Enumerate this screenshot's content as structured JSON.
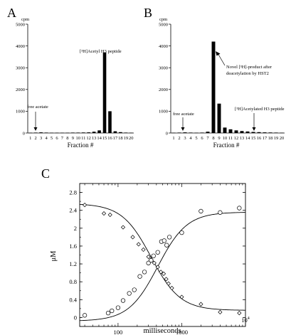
{
  "chart_data": [
    {
      "panel": "A",
      "type": "bar",
      "ylabel": "cpm",
      "xlabel": "Fraction #",
      "categories": [
        "1",
        "2",
        "3",
        "4",
        "5",
        "6",
        "7",
        "8",
        "9",
        "10",
        "11",
        "12",
        "13",
        "14",
        "15",
        "16",
        "17",
        "18",
        "19",
        "20"
      ],
      "values": [
        15,
        20,
        30,
        20,
        15,
        15,
        15,
        15,
        20,
        20,
        25,
        30,
        60,
        120,
        3700,
        1000,
        80,
        40,
        20,
        15
      ],
      "ylim": [
        0,
        5000
      ],
      "yticks": [
        "0",
        "1000",
        "2000",
        "3000",
        "4000",
        "5000"
      ],
      "annotations": [
        {
          "text": "free acetate",
          "category": "3"
        },
        {
          "text": "[³H]Acetyl H3 peptide",
          "category": "15"
        }
      ]
    },
    {
      "panel": "B",
      "type": "bar",
      "ylabel": "cpm",
      "xlabel": "Fraction #",
      "categories": [
        "1",
        "2",
        "3",
        "4",
        "5",
        "6",
        "7",
        "8",
        "9",
        "10",
        "11",
        "12",
        "13",
        "14",
        "15",
        "16",
        "17",
        "18",
        "19",
        "20"
      ],
      "values": [
        15,
        20,
        30,
        20,
        15,
        20,
        60,
        4200,
        1350,
        250,
        170,
        120,
        90,
        70,
        50,
        40,
        30,
        25,
        20,
        15
      ],
      "ylim": [
        0,
        5000
      ],
      "yticks": [
        "0",
        "1000",
        "2000",
        "3000",
        "4000",
        "5000"
      ],
      "annotations": [
        {
          "text": "free acetate",
          "category": "3"
        },
        {
          "text": "Novel [³H]-product after",
          "category": "8"
        },
        {
          "text": "deacetylation by HST2",
          "category": "8"
        },
        {
          "text": "[³H]Acetylated H3 peptide",
          "category": "15"
        }
      ]
    },
    {
      "panel": "C",
      "type": "scatter",
      "xscale": "log",
      "xlabel": "milliseconds",
      "ylabel": "μM",
      "xlim": [
        25,
        10000
      ],
      "ylim": [
        -0.2,
        3.0
      ],
      "xticks": [
        {
          "value": 100,
          "label": "100"
        },
        {
          "value": 1000,
          "label": "1000"
        }
      ],
      "xtick_last": {
        "base": "10",
        "exp": "4"
      },
      "yticks": [
        "0",
        "0.4",
        "0.8",
        "1.2",
        "1.6",
        "2",
        "2.4",
        "2.8"
      ],
      "series": [
        {
          "marker": "diamond",
          "x": [
            30,
            60,
            75,
            120,
            170,
            210,
            250,
            300,
            330,
            370,
            420,
            470,
            520,
            570,
            620,
            700,
            1000,
            2000,
            4000,
            8000
          ],
          "y": [
            2.52,
            2.33,
            2.3,
            2.02,
            1.8,
            1.64,
            1.52,
            1.36,
            1.3,
            1.22,
            1.13,
            1.02,
            0.98,
            0.86,
            0.76,
            0.66,
            0.46,
            0.3,
            0.12,
            0.1
          ],
          "fit": {
            "top": 2.55,
            "bottom": 0.16,
            "x50": 330,
            "hill": 1.9
          }
        },
        {
          "marker": "circle",
          "x": [
            30,
            70,
            80,
            100,
            120,
            150,
            180,
            220,
            260,
            300,
            330,
            360,
            420,
            480,
            530,
            580,
            640,
            1000,
            2000,
            4000,
            8000
          ],
          "y": [
            0.05,
            0.1,
            0.15,
            0.22,
            0.38,
            0.54,
            0.62,
            0.92,
            1.02,
            1.22,
            1.28,
            1.38,
            1.46,
            1.7,
            1.72,
            1.62,
            1.8,
            1.9,
            2.38,
            2.35,
            2.45
          ],
          "fit": {
            "top": 2.36,
            "bottom": -0.08,
            "x50": 420,
            "hill": 1.9
          }
        }
      ]
    }
  ]
}
